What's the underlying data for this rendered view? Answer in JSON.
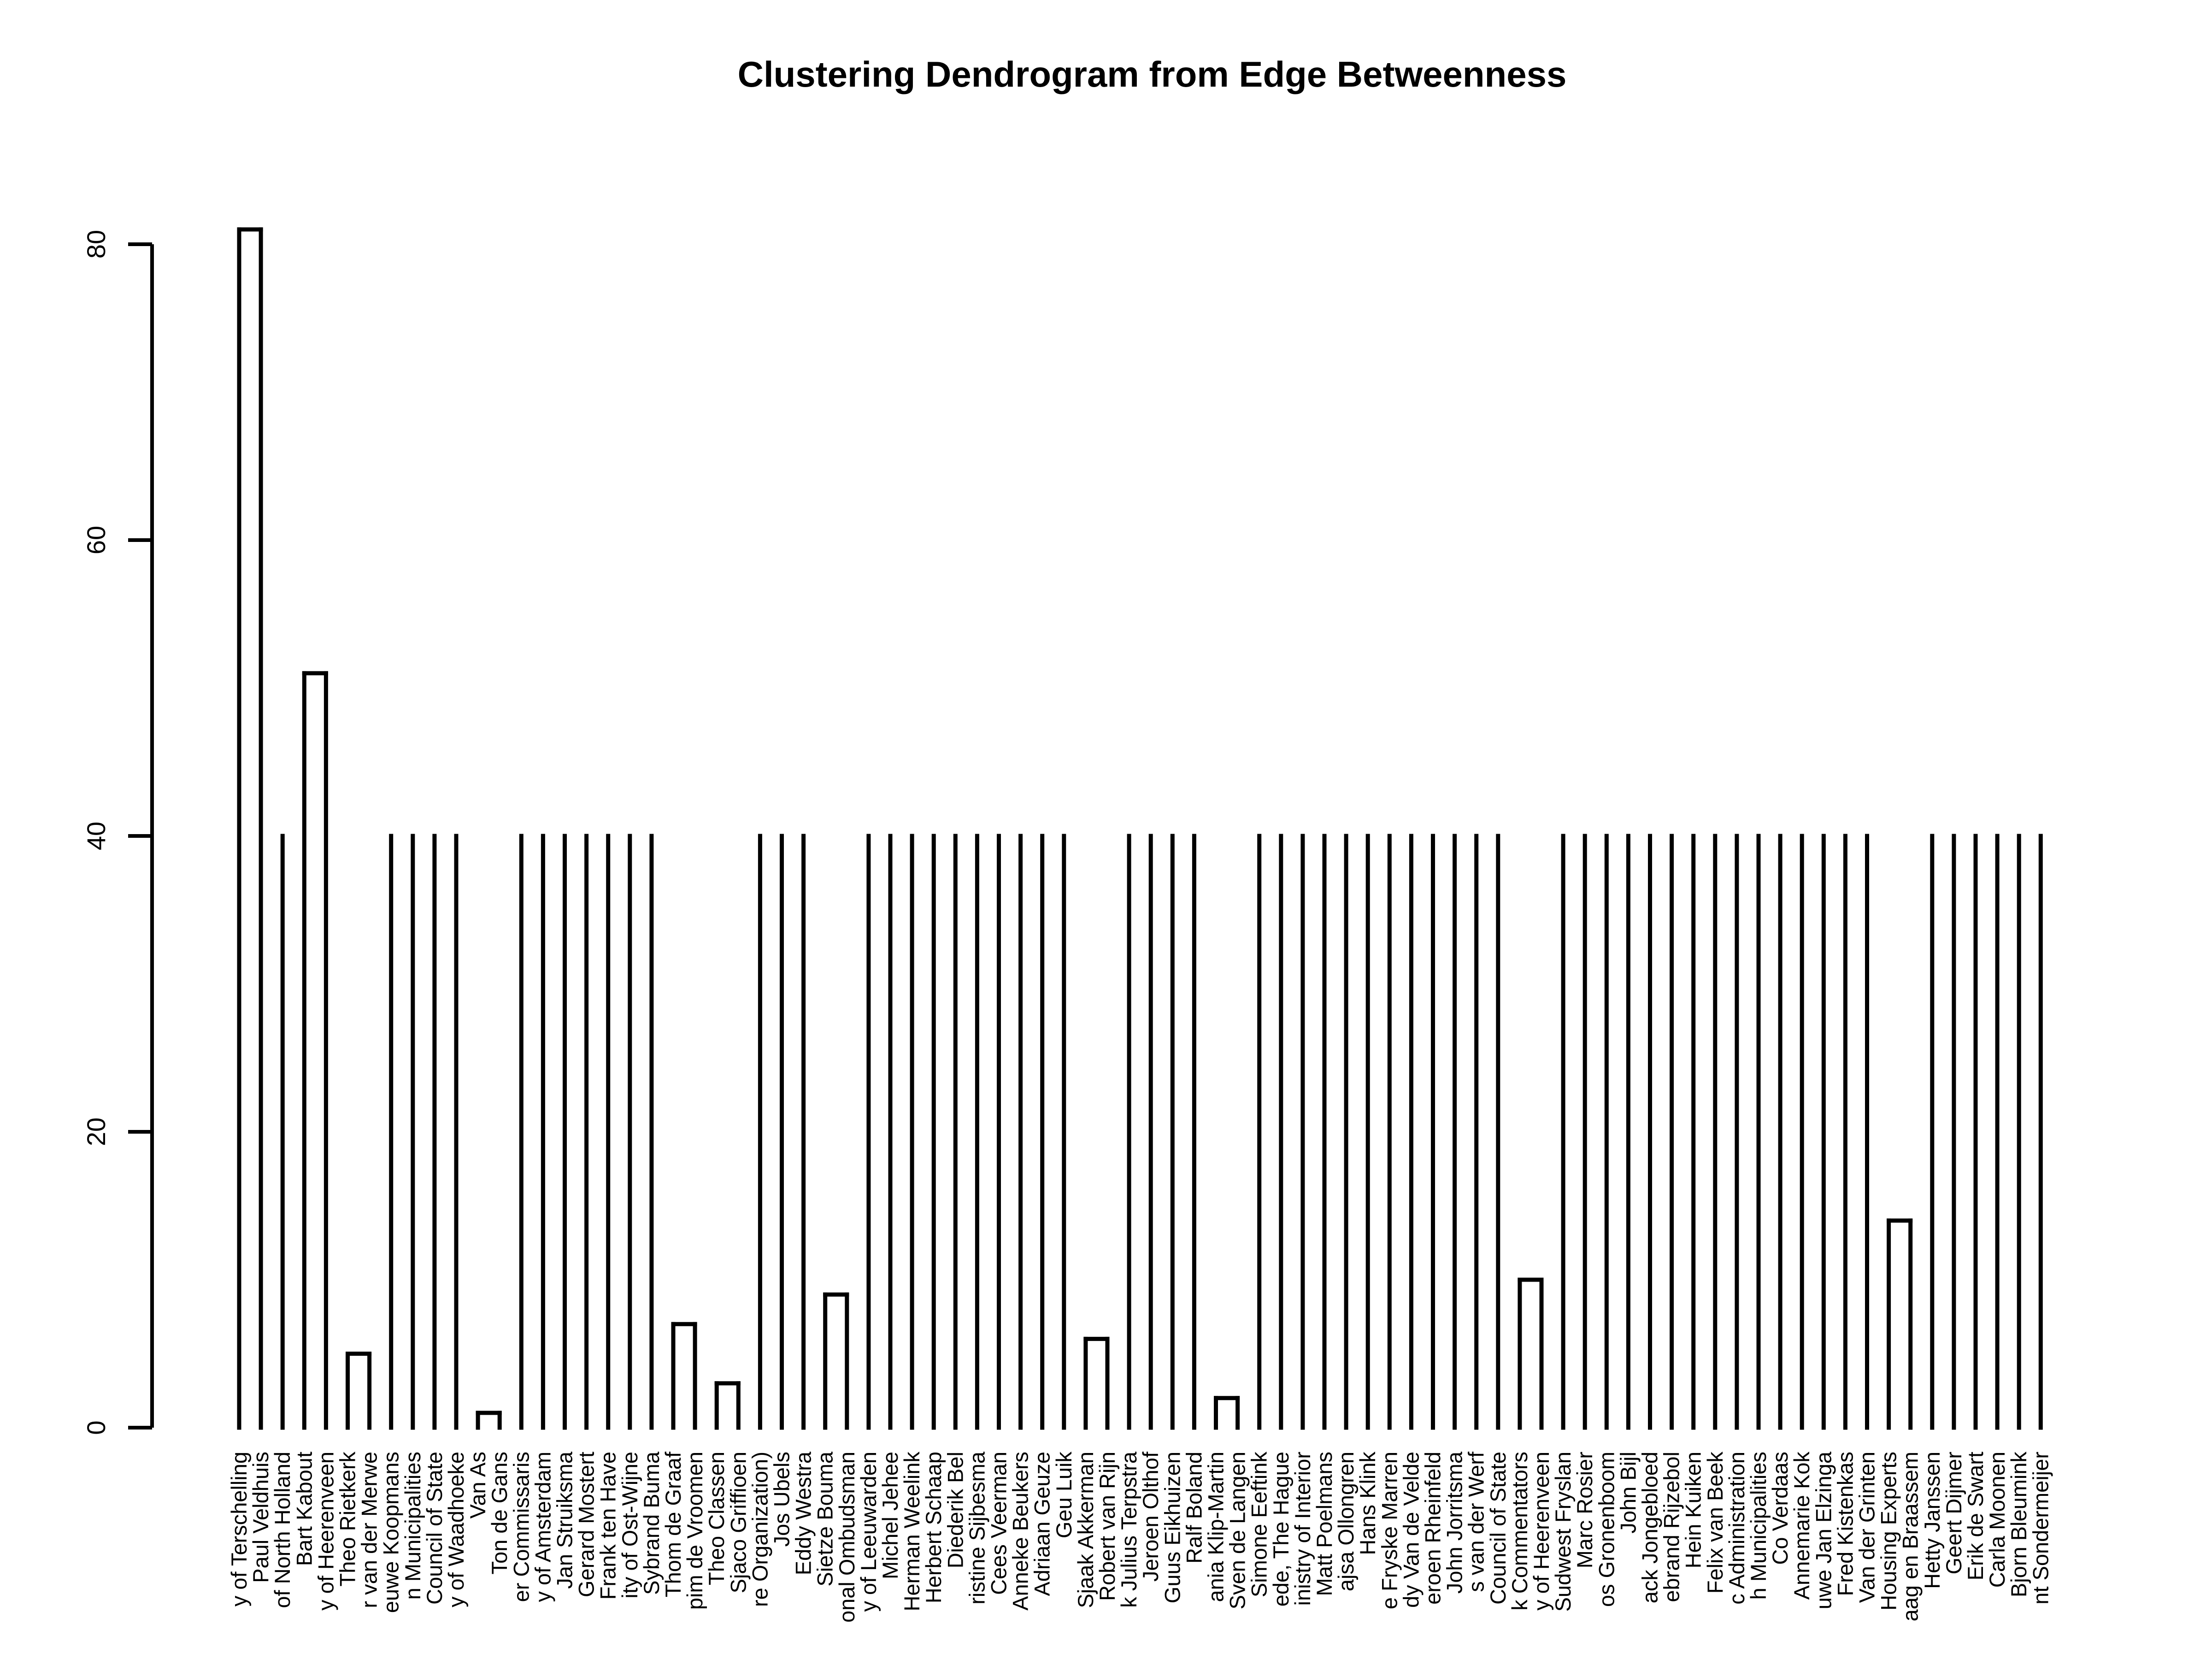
{
  "chart_data": {
    "type": "dendrogram",
    "title": "Clustering Dendrogram from Edge Betweenness",
    "ylim": [
      0,
      80
    ],
    "yticks": [
      0,
      20,
      40,
      60,
      80
    ],
    "leaves": [
      "y of Terschelling",
      "Paul Veldhuis",
      "of North Holland",
      "Bart Kabout",
      "y of Heerenveen",
      "Theo Rietkerk",
      "r van der Merwe",
      "euwe Koopmans",
      "n Municipalities",
      "Council of State",
      "y of Waadhoeke",
      "Van As",
      "Ton de Gans",
      "er Commissaris",
      "y of Amsterdam",
      "Jan Struiksma",
      "Gerard Mostert",
      "Frank ten Have",
      "ity of Ost-Wijne",
      "Sybrand Buma",
      "Thom de Graaf",
      "pim de Vroomen",
      "Theo Classen",
      "Sjaco Griffioen",
      "re Organization)",
      "Jos Ubels",
      "Eddy Westra",
      "Sietze Bouma",
      "onal Ombudsman",
      "y of Leeuwarden",
      "Michel Jehee",
      "Herman Weelink",
      "Herbert Schaap",
      "Diederik Bel",
      "ristine Sijbesma",
      "Cees Veerman",
      "Anneke Beukers",
      "Adriaan Geuze",
      "Geu Luik",
      "Sjaak Akkerman",
      "Robert van Rijn",
      "k Julius Terpstra",
      "Jeroen Olthof",
      "Guus Eikhuizen",
      "Ralf Boland",
      "ania Klip-Martin",
      "Sven de Langen",
      "Simone Eeftink",
      "ede, The Hague",
      "inistry of Interior",
      "Matt Poelmans",
      "ajsa Ollongren",
      "Hans Klink",
      "e Fryske Marren",
      "dy Van de Velde",
      "eroen Rheinfeld",
      "John Jorritsma",
      "s van der Werf",
      "Council of State",
      "k Commentators",
      "y of Heerenveen",
      "Sudwest Fryslan",
      "Marc Rosier",
      "os Gronenboom",
      "John Bijl",
      "ack Jongebloed",
      "ebrand Rijzebol",
      "Hein Kuiken",
      "Felix van Beek",
      "c Administration",
      "h Municipalities",
      "Co Verdaas",
      "Annemarie Kok",
      "uwe Jan Elzinga",
      "Fred Kistenkas",
      "Van der Grinten",
      "Housing Experts",
      "aag en Braassem",
      "Hetty Janssen",
      "Geert Dijmer",
      "Erik de Swart",
      "Carla Moonen",
      "Bjorn Bleumink",
      "nt Sondermeijer"
    ],
    "merges": [
      {
        "children": [
          0,
          1
        ],
        "height": 81
      },
      {
        "children": [
          3,
          4
        ],
        "height": 51
      },
      {
        "children": [
          5,
          6
        ],
        "height": 5
      },
      {
        "children": [
          11,
          12
        ],
        "height": 1
      },
      {
        "children": [
          22,
          23
        ],
        "height": 3
      },
      {
        "children": [
          20,
          21
        ],
        "height": 7
      },
      {
        "children": [
          27,
          28
        ],
        "height": 9
      },
      {
        "children": [
          39,
          40
        ],
        "height": 6
      },
      {
        "children": [
          45,
          46
        ],
        "height": 2
      },
      {
        "children": [
          59,
          60
        ],
        "height": 10
      },
      {
        "children": [
          76,
          77
        ],
        "height": 14
      }
    ]
  }
}
